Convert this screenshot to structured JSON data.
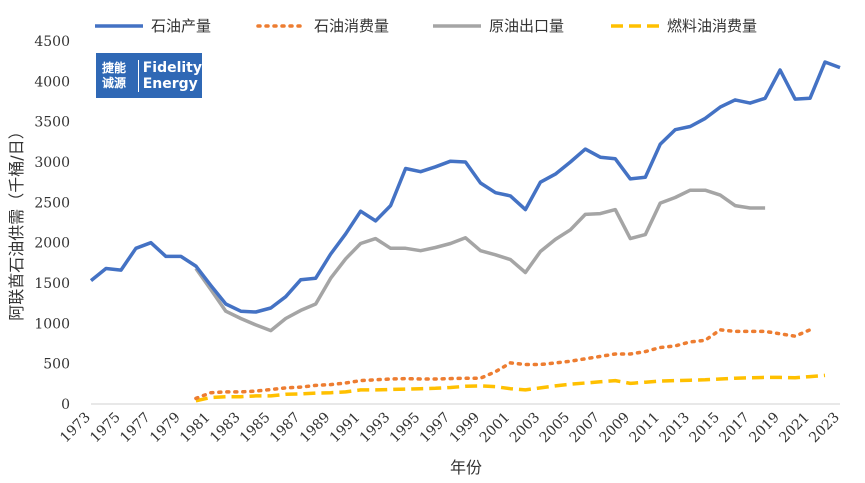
{
  "logo": {
    "cn_line1": "捷能",
    "cn_line2": "诚源",
    "en_line1": "Fidelity",
    "en_line2": "Energy"
  },
  "chart_data": {
    "type": "line",
    "title": "",
    "xlabel": "年份",
    "ylabel": "阿联酋石油供需（千桶/日）",
    "ylim": [
      0,
      4500
    ],
    "yticks": [
      0,
      500,
      1000,
      1500,
      2000,
      2500,
      3000,
      3500,
      4000,
      4500
    ],
    "xlim": [
      1973,
      2023
    ],
    "xticks": [
      "1973",
      "1975",
      "1977",
      "1979",
      "1981",
      "1983",
      "1985",
      "1987",
      "1989",
      "1991",
      "1993",
      "1995",
      "1997",
      "1999",
      "2001",
      "2003",
      "2005",
      "2007",
      "2009",
      "2011",
      "2013",
      "2015",
      "2017",
      "2019",
      "2021",
      "2023"
    ],
    "grid": false,
    "legend_position": "top",
    "series": [
      {
        "name": "石油产量",
        "style": "solid",
        "color": "#4472c4",
        "x": [
          1973,
          1974,
          1975,
          1976,
          1977,
          1978,
          1979,
          1980,
          1981,
          1982,
          1983,
          1984,
          1985,
          1986,
          1987,
          1988,
          1989,
          1990,
          1991,
          1992,
          1993,
          1994,
          1995,
          1996,
          1997,
          1998,
          1999,
          2000,
          2001,
          2002,
          2003,
          2004,
          2005,
          2006,
          2007,
          2008,
          2009,
          2010,
          2011,
          2012,
          2013,
          2014,
          2015,
          2016,
          2017,
          2018,
          2019,
          2020,
          2021,
          2022,
          2023
        ],
        "values": [
          1530,
          1680,
          1660,
          1930,
          2000,
          1830,
          1830,
          1710,
          1470,
          1240,
          1150,
          1140,
          1190,
          1330,
          1540,
          1560,
          1860,
          2110,
          2390,
          2270,
          2460,
          2920,
          2880,
          2940,
          3010,
          3000,
          2740,
          2620,
          2580,
          2410,
          2750,
          2850,
          3000,
          3160,
          3060,
          3040,
          2790,
          2810,
          3220,
          3400,
          3440,
          3540,
          3680,
          3770,
          3730,
          3790,
          4140,
          3780,
          3790,
          4240,
          4170
        ]
      },
      {
        "name": "石油消费量",
        "style": "dotted",
        "color": "#ed7d31",
        "x": [
          1980,
          1981,
          1982,
          1983,
          1984,
          1985,
          1986,
          1987,
          1988,
          1989,
          1990,
          1991,
          1992,
          1993,
          1994,
          1995,
          1996,
          1997,
          1998,
          1999,
          2000,
          2001,
          2002,
          2003,
          2004,
          2005,
          2006,
          2007,
          2008,
          2009,
          2010,
          2011,
          2012,
          2013,
          2014,
          2015,
          2016,
          2017,
          2018,
          2019,
          2020,
          2021
        ],
        "values": [
          70,
          140,
          150,
          150,
          160,
          180,
          200,
          210,
          230,
          240,
          260,
          290,
          300,
          310,
          315,
          310,
          310,
          315,
          320,
          320,
          400,
          510,
          490,
          490,
          510,
          530,
          560,
          590,
          620,
          620,
          650,
          700,
          720,
          770,
          790,
          920,
          900,
          900,
          900,
          870,
          840,
          920
        ]
      },
      {
        "name": "原油出口量",
        "style": "solid",
        "color": "#a5a5a5",
        "x": [
          1980,
          1981,
          1982,
          1983,
          1984,
          1985,
          1986,
          1987,
          1988,
          1989,
          1990,
          1991,
          1992,
          1993,
          1994,
          1995,
          1996,
          1997,
          1998,
          1999,
          2000,
          2001,
          2002,
          2003,
          2004,
          2005,
          2006,
          2007,
          2008,
          2009,
          2010,
          2011,
          2012,
          2013,
          2014,
          2015,
          2016,
          2017,
          2018
        ],
        "values": [
          1680,
          1420,
          1150,
          1060,
          980,
          910,
          1060,
          1160,
          1240,
          1560,
          1800,
          1990,
          2050,
          1930,
          1930,
          1900,
          1940,
          1990,
          2060,
          1900,
          1850,
          1790,
          1630,
          1890,
          2040,
          2160,
          2350,
          2360,
          2410,
          2050,
          2100,
          2490,
          2560,
          2650,
          2650,
          2590,
          2460,
          2430,
          2430
        ]
      },
      {
        "name": "燃料油消费量",
        "style": "dashed",
        "color": "#ffc000",
        "x": [
          1980,
          1981,
          1982,
          1983,
          1984,
          1985,
          1986,
          1987,
          1988,
          1989,
          1990,
          1991,
          1992,
          1993,
          1994,
          1995,
          1996,
          1997,
          1998,
          1999,
          2000,
          2001,
          2002,
          2003,
          2004,
          2005,
          2006,
          2007,
          2008,
          2009,
          2010,
          2011,
          2012,
          2013,
          2014,
          2015,
          2016,
          2017,
          2018,
          2019,
          2020,
          2021,
          2022
        ],
        "values": [
          40,
          80,
          90,
          90,
          100,
          100,
          120,
          125,
          135,
          140,
          150,
          175,
          175,
          180,
          185,
          190,
          195,
          205,
          220,
          225,
          215,
          190,
          175,
          200,
          225,
          245,
          260,
          275,
          290,
          255,
          270,
          285,
          290,
          295,
          300,
          310,
          320,
          325,
          330,
          330,
          325,
          340,
          355
        ]
      }
    ]
  }
}
